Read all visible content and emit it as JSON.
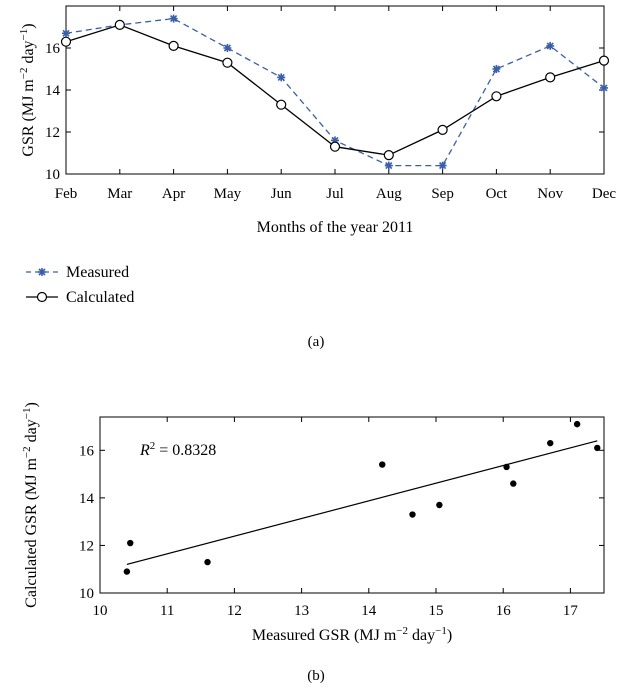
{
  "chart_data": [
    {
      "type": "line",
      "panel_label": "(a)",
      "xlabel": "Months of the year 2011",
      "ylabel": "GSR (MJ m",
      "ylabel_sup1": "−2",
      "ylabel_mid": " day",
      "ylabel_sup2": "−1",
      "ylabel_end": ")",
      "categories": [
        "Feb",
        "Mar",
        "Apr",
        "May",
        "Jun",
        "Jul",
        "Aug",
        "Sep",
        "Oct",
        "Nov",
        "Dec"
      ],
      "ylim": [
        10,
        18
      ],
      "yticks": [
        "10",
        "12",
        "14",
        "16"
      ],
      "legend_position": "bottom-left",
      "series": [
        {
          "name": "Measured",
          "color": "#3a5fa8",
          "style": "dashed",
          "marker": "asterisk",
          "values": [
            16.7,
            17.1,
            17.4,
            16.0,
            14.6,
            11.6,
            10.4,
            10.4,
            15.0,
            16.1,
            14.1
          ]
        },
        {
          "name": "Calculated",
          "color": "#000000",
          "style": "solid",
          "marker": "open-circle",
          "values": [
            16.3,
            17.1,
            16.1,
            15.3,
            13.3,
            11.3,
            10.9,
            12.1,
            13.7,
            14.6,
            15.4
          ]
        }
      ]
    },
    {
      "type": "scatter",
      "panel_label": "(b)",
      "xlabel": "Measured GSR (MJ m",
      "xlabel_sup1": "−2",
      "xlabel_mid": " day",
      "xlabel_sup2": "−1",
      "xlabel_end": ")",
      "ylabel": "Calculated GSR (MJ m",
      "ylabel_sup1": "−2",
      "ylabel_mid": " day",
      "ylabel_sup2": "−1",
      "ylabel_end": ")",
      "annotation_symbol": "R",
      "annotation_sup": "2",
      "annotation_value": " = 0.8328",
      "xlim": [
        10,
        17.5
      ],
      "ylim": [
        10,
        17.4
      ],
      "xticks": [
        "10",
        "11",
        "12",
        "13",
        "14",
        "15",
        "16",
        "17"
      ],
      "yticks": [
        "10",
        "12",
        "14",
        "16"
      ],
      "points": [
        [
          10.4,
          10.9
        ],
        [
          10.45,
          12.1
        ],
        [
          11.6,
          11.3
        ],
        [
          14.2,
          15.4
        ],
        [
          14.65,
          13.3
        ],
        [
          15.05,
          13.7
        ],
        [
          16.05,
          15.3
        ],
        [
          16.15,
          14.6
        ],
        [
          16.7,
          16.3
        ],
        [
          17.1,
          17.1
        ],
        [
          17.4,
          16.1
        ]
      ],
      "fit_line": {
        "x": [
          10.4,
          17.4
        ],
        "y": [
          11.2,
          16.4
        ]
      }
    }
  ]
}
